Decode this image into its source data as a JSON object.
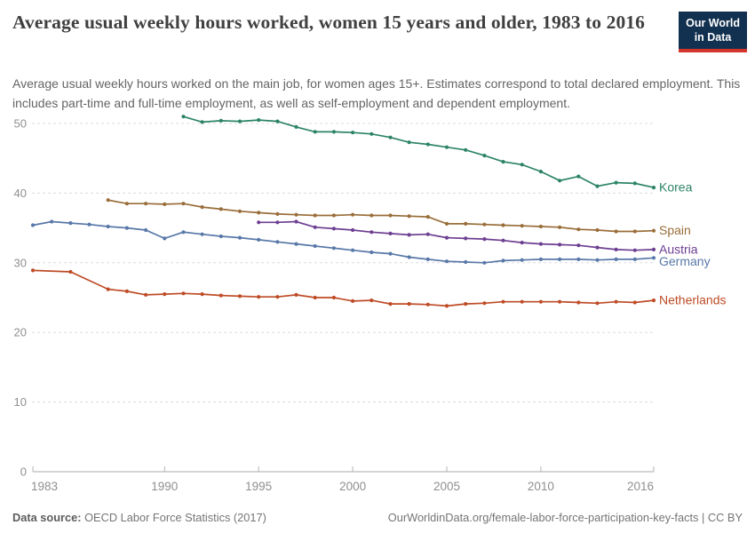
{
  "logo": {
    "line1": "Our World",
    "line2": "in Data"
  },
  "header": {
    "title": "Average usual weekly hours worked, women 15 years and older, 1983 to 2016",
    "subtitle": "Average usual weekly hours worked on the main job, for women ages 15+. Estimates correspond to total declared employment. This includes part-time and full-time employment, as well as self-employment and dependent employment."
  },
  "footer": {
    "source_label": "Data source:",
    "source_text": " OECD Labor Force Statistics (2017)",
    "link_text": "OurWorldinData.org/female-labor-force-participation-key-facts | CC BY"
  },
  "colors": {
    "logo_background": "#12304F",
    "logo_accent": "#D3362D",
    "gridline": "#DCDCDC",
    "axis_line": "#A8A8A8",
    "tick_label": "#8F8F8F",
    "title_text": "#404040",
    "subtitle_text": "#646464",
    "footer_text": "#757575"
  },
  "chart_data": {
    "type": "line",
    "title": "Average usual weekly hours worked, women 15 years and older, 1983 to 2016",
    "xlabel": "",
    "ylabel": "",
    "x_axis": {
      "ticks": [
        1983,
        1990,
        1995,
        2000,
        2005,
        2010,
        2016
      ],
      "range": [
        1983,
        2016
      ]
    },
    "y_axis": {
      "ticks": [
        0,
        10,
        20,
        30,
        40,
        50
      ],
      "range": [
        0,
        52
      ]
    },
    "grid": "horizontal-dashed",
    "legend_position": "right-end-labels",
    "series": [
      {
        "name": "Korea",
        "color": "#2C8465",
        "points": [
          [
            1991,
            51.0
          ],
          [
            1992,
            50.2
          ],
          [
            1993,
            50.4
          ],
          [
            1994,
            50.3
          ],
          [
            1995,
            50.5
          ],
          [
            1996,
            50.3
          ],
          [
            1997,
            49.5
          ],
          [
            1998,
            48.8
          ],
          [
            1999,
            48.8
          ],
          [
            2000,
            48.7
          ],
          [
            2001,
            48.5
          ],
          [
            2002,
            48.0
          ],
          [
            2003,
            47.3
          ],
          [
            2004,
            47.0
          ],
          [
            2005,
            46.6
          ],
          [
            2006,
            46.2
          ],
          [
            2007,
            45.4
          ],
          [
            2008,
            44.5
          ],
          [
            2009,
            44.1
          ],
          [
            2010,
            43.1
          ],
          [
            2011,
            41.8
          ],
          [
            2012,
            42.4
          ],
          [
            2013,
            41.0
          ],
          [
            2014,
            41.5
          ],
          [
            2015,
            41.4
          ],
          [
            2016,
            40.8
          ]
        ]
      },
      {
        "name": "Spain",
        "color": "#996D39",
        "points": [
          [
            1987,
            39.0
          ],
          [
            1988,
            38.5
          ],
          [
            1989,
            38.5
          ],
          [
            1990,
            38.4
          ],
          [
            1991,
            38.5
          ],
          [
            1992,
            38.0
          ],
          [
            1993,
            37.7
          ],
          [
            1994,
            37.4
          ],
          [
            1995,
            37.2
          ],
          [
            1996,
            37.0
          ],
          [
            1997,
            36.9
          ],
          [
            1998,
            36.8
          ],
          [
            1999,
            36.8
          ],
          [
            2000,
            36.9
          ],
          [
            2001,
            36.8
          ],
          [
            2002,
            36.8
          ],
          [
            2003,
            36.7
          ],
          [
            2004,
            36.6
          ],
          [
            2005,
            35.6
          ],
          [
            2006,
            35.6
          ],
          [
            2007,
            35.5
          ],
          [
            2008,
            35.4
          ],
          [
            2009,
            35.3
          ],
          [
            2010,
            35.2
          ],
          [
            2011,
            35.1
          ],
          [
            2012,
            34.8
          ],
          [
            2013,
            34.7
          ],
          [
            2014,
            34.5
          ],
          [
            2015,
            34.5
          ],
          [
            2016,
            34.6
          ]
        ]
      },
      {
        "name": "Austria",
        "color": "#6D3E91",
        "points": [
          [
            1995,
            35.8
          ],
          [
            1996,
            35.8
          ],
          [
            1997,
            35.9
          ],
          [
            1998,
            35.1
          ],
          [
            1999,
            34.9
          ],
          [
            2000,
            34.7
          ],
          [
            2001,
            34.4
          ],
          [
            2002,
            34.2
          ],
          [
            2003,
            34.0
          ],
          [
            2004,
            34.1
          ],
          [
            2005,
            33.6
          ],
          [
            2006,
            33.5
          ],
          [
            2007,
            33.4
          ],
          [
            2008,
            33.2
          ],
          [
            2009,
            32.9
          ],
          [
            2010,
            32.7
          ],
          [
            2011,
            32.6
          ],
          [
            2012,
            32.5
          ],
          [
            2013,
            32.2
          ],
          [
            2014,
            31.9
          ],
          [
            2015,
            31.8
          ],
          [
            2016,
            31.9
          ]
        ]
      },
      {
        "name": "Germany",
        "color": "#5878A8",
        "points": [
          [
            1983,
            35.4
          ],
          [
            1984,
            35.9
          ],
          [
            1985,
            35.7
          ],
          [
            1986,
            35.5
          ],
          [
            1987,
            35.2
          ],
          [
            1988,
            35.0
          ],
          [
            1989,
            34.7
          ],
          [
            1990,
            33.5
          ],
          [
            1991,
            34.4
          ],
          [
            1992,
            34.1
          ],
          [
            1993,
            33.8
          ],
          [
            1994,
            33.6
          ],
          [
            1995,
            33.3
          ],
          [
            1996,
            33.0
          ],
          [
            1997,
            32.7
          ],
          [
            1998,
            32.4
          ],
          [
            1999,
            32.1
          ],
          [
            2000,
            31.8
          ],
          [
            2001,
            31.5
          ],
          [
            2002,
            31.3
          ],
          [
            2003,
            30.8
          ],
          [
            2004,
            30.5
          ],
          [
            2005,
            30.2
          ],
          [
            2006,
            30.1
          ],
          [
            2007,
            30.0
          ],
          [
            2008,
            30.3
          ],
          [
            2009,
            30.4
          ],
          [
            2010,
            30.5
          ],
          [
            2011,
            30.5
          ],
          [
            2012,
            30.5
          ],
          [
            2013,
            30.4
          ],
          [
            2014,
            30.5
          ],
          [
            2015,
            30.5
          ],
          [
            2016,
            30.7
          ]
        ]
      },
      {
        "name": "Netherlands",
        "color": "#BE4B26",
        "points": [
          [
            1983,
            28.9
          ],
          [
            1985,
            28.7
          ],
          [
            1987,
            26.2
          ],
          [
            1988,
            25.9
          ],
          [
            1989,
            25.4
          ],
          [
            1990,
            25.5
          ],
          [
            1991,
            25.6
          ],
          [
            1992,
            25.5
          ],
          [
            1993,
            25.3
          ],
          [
            1994,
            25.2
          ],
          [
            1995,
            25.1
          ],
          [
            1996,
            25.1
          ],
          [
            1997,
            25.4
          ],
          [
            1998,
            25.0
          ],
          [
            1999,
            25.0
          ],
          [
            2000,
            24.5
          ],
          [
            2001,
            24.6
          ],
          [
            2002,
            24.1
          ],
          [
            2003,
            24.1
          ],
          [
            2004,
            24.0
          ],
          [
            2005,
            23.8
          ],
          [
            2006,
            24.1
          ],
          [
            2007,
            24.2
          ],
          [
            2008,
            24.4
          ],
          [
            2009,
            24.4
          ],
          [
            2010,
            24.4
          ],
          [
            2011,
            24.4
          ],
          [
            2012,
            24.3
          ],
          [
            2013,
            24.2
          ],
          [
            2014,
            24.4
          ],
          [
            2015,
            24.3
          ],
          [
            2016,
            24.6
          ]
        ]
      }
    ]
  }
}
